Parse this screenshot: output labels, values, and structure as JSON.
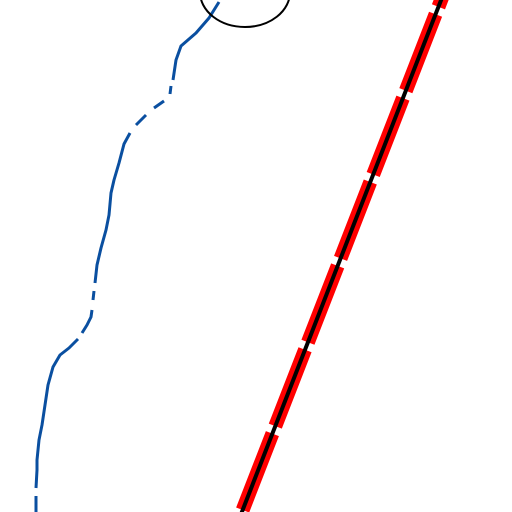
{
  "map": {
    "background_color": "#ffffff",
    "features": {
      "waterway": {
        "kind": "stream",
        "line_style": "dashed-segments",
        "color": "#0a4fa0"
      },
      "railway": {
        "kind": "railway",
        "line_style": "black-center-with-red-dashed-casing",
        "casing_color": "#ff0000",
        "center_color": "#000000"
      },
      "circle_marker": {
        "kind": "outline-circle",
        "stroke_color": "#000000",
        "fill": "none"
      }
    }
  }
}
